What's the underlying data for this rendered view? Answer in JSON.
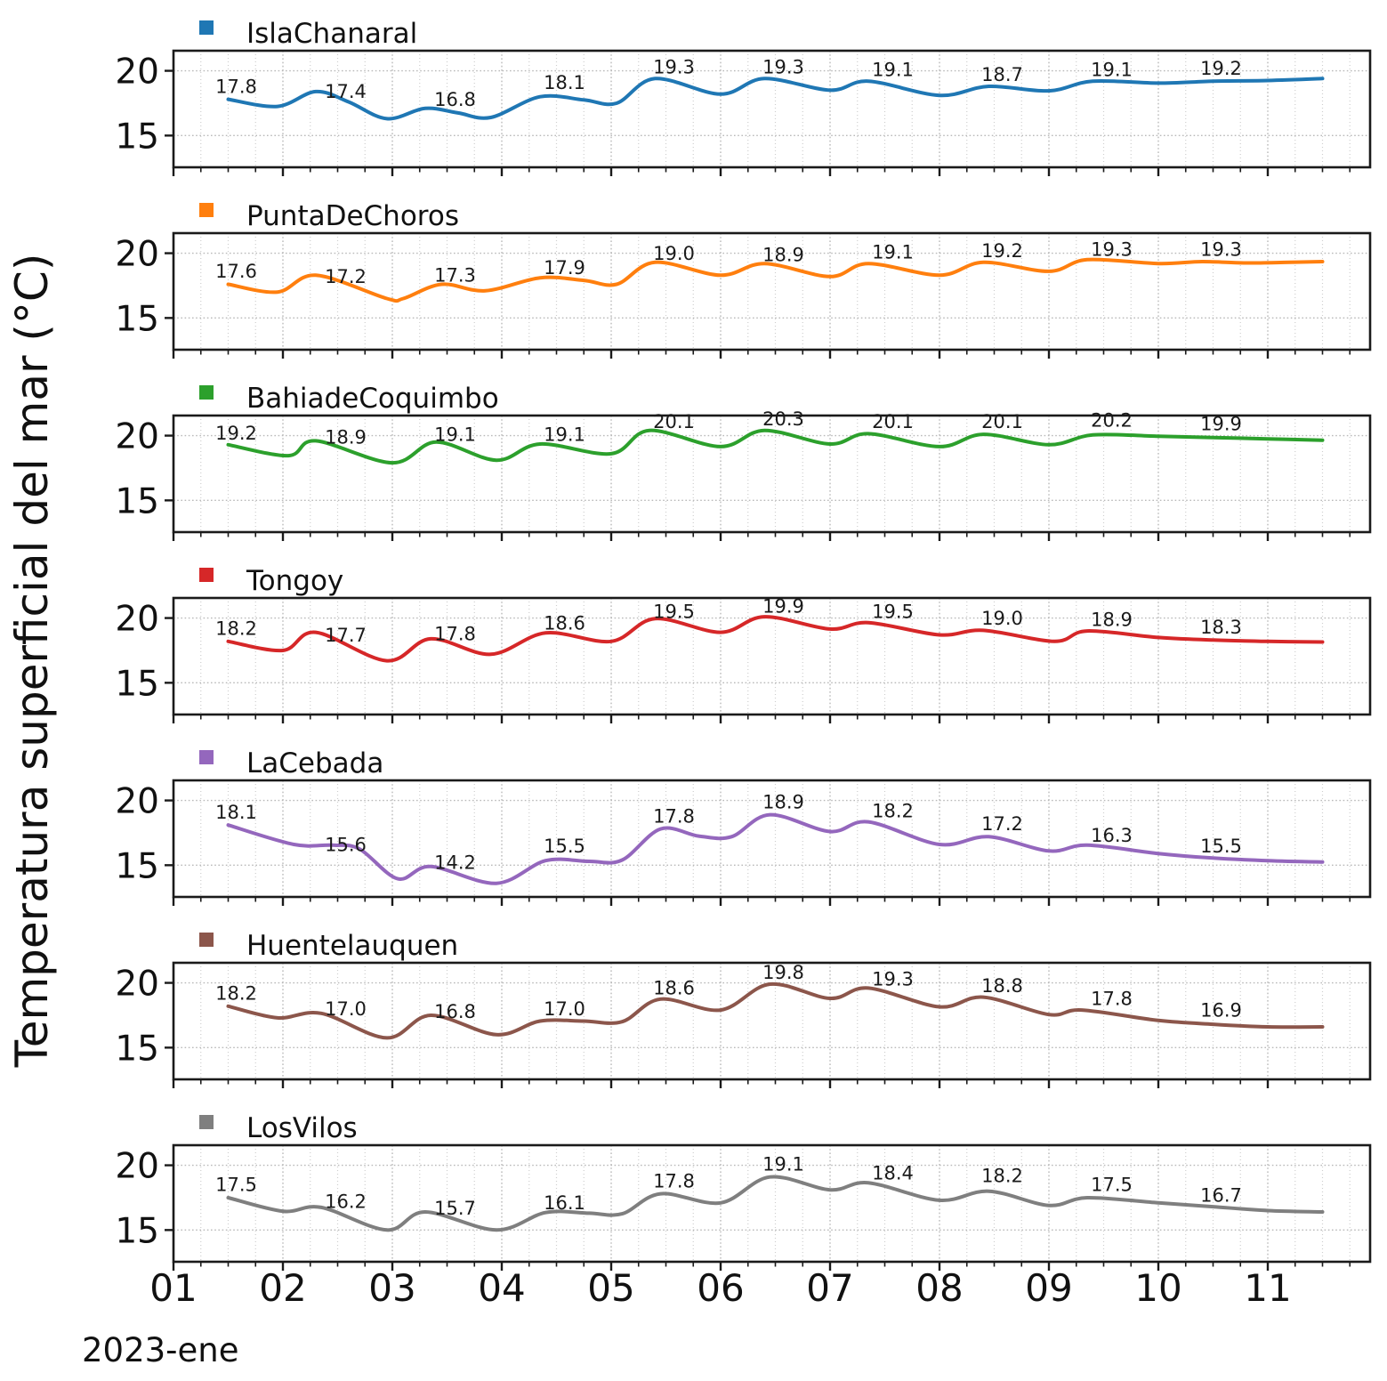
{
  "figure": {
    "ylabel": "Temperatura superficial del mar (°C)",
    "x_offset_label": "2023-ene",
    "y_tick_labels": [
      "20",
      "15"
    ],
    "x_tick_labels": [
      "01",
      "02",
      "03",
      "04",
      "05",
      "06",
      "07",
      "08",
      "09",
      "10",
      "11"
    ]
  },
  "chart_data": {
    "type": "line",
    "title": "",
    "ylabel": "Temperatura superficial del mar (°C)",
    "xlabel": "2023-ene",
    "x_unit": "day of January 2023",
    "xlim": [
      1.0,
      11.93
    ],
    "ylim": [
      12.55,
      21.55
    ],
    "x_ticks": [
      1,
      2,
      3,
      4,
      5,
      6,
      7,
      8,
      9,
      10,
      11
    ],
    "x_minor_tick_step": 0.25,
    "y_ticks": [
      15,
      20
    ],
    "grid": true,
    "legend_position": "above-each-subplot",
    "label_days": [
      1.5,
      2.5,
      3.5,
      4.5,
      5.5,
      6.5,
      7.5,
      8.5,
      9.5,
      10.5
    ],
    "series": [
      {
        "name": "IslaChanaral",
        "color": "#1f77b4",
        "daily_labels": [
          "17.8",
          "17.4",
          "16.8",
          "18.1",
          "19.3",
          "19.3",
          "19.1",
          "18.7",
          "19.1",
          "19.2"
        ],
        "curve": [
          [
            1.5,
            17.8
          ],
          [
            1.95,
            17.25
          ],
          [
            2.3,
            18.4
          ],
          [
            2.6,
            17.6
          ],
          [
            2.95,
            16.3
          ],
          [
            3.3,
            17.1
          ],
          [
            3.6,
            16.75
          ],
          [
            3.9,
            16.4
          ],
          [
            4.35,
            18.0
          ],
          [
            4.75,
            17.75
          ],
          [
            5.05,
            17.5
          ],
          [
            5.4,
            19.4
          ],
          [
            6.0,
            18.2
          ],
          [
            6.4,
            19.4
          ],
          [
            7.0,
            18.5
          ],
          [
            7.35,
            19.2
          ],
          [
            8.0,
            18.1
          ],
          [
            8.45,
            18.8
          ],
          [
            9.0,
            18.45
          ],
          [
            9.4,
            19.2
          ],
          [
            10.0,
            19.05
          ],
          [
            10.5,
            19.2
          ],
          [
            11.0,
            19.25
          ],
          [
            11.5,
            19.4
          ]
        ]
      },
      {
        "name": "PuntaDeChoros",
        "color": "#ff7f0e",
        "daily_labels": [
          "17.6",
          "17.2",
          "17.3",
          "17.9",
          "19.0",
          "18.9",
          "19.1",
          "19.2",
          "19.3",
          "19.3"
        ],
        "curve": [
          [
            1.5,
            17.6
          ],
          [
            1.95,
            17.0
          ],
          [
            2.3,
            18.3
          ],
          [
            2.95,
            16.5
          ],
          [
            3.1,
            16.5
          ],
          [
            3.45,
            17.6
          ],
          [
            3.85,
            17.1
          ],
          [
            4.35,
            18.1
          ],
          [
            4.75,
            17.9
          ],
          [
            5.05,
            17.6
          ],
          [
            5.4,
            19.3
          ],
          [
            6.0,
            18.3
          ],
          [
            6.4,
            19.2
          ],
          [
            7.0,
            18.2
          ],
          [
            7.35,
            19.2
          ],
          [
            8.0,
            18.3
          ],
          [
            8.4,
            19.3
          ],
          [
            9.0,
            18.6
          ],
          [
            9.35,
            19.5
          ],
          [
            10.0,
            19.2
          ],
          [
            10.4,
            19.35
          ],
          [
            10.8,
            19.25
          ],
          [
            11.2,
            19.3
          ],
          [
            11.5,
            19.35
          ]
        ]
      },
      {
        "name": "BahiadeCoquimbo",
        "color": "#2ca02c",
        "daily_labels": [
          "19.2",
          "18.9",
          "19.1",
          "19.1",
          "20.1",
          "20.3",
          "20.1",
          "20.1",
          "20.2",
          "19.9"
        ],
        "curve": [
          [
            1.5,
            19.3
          ],
          [
            2.05,
            18.45
          ],
          [
            2.3,
            19.6
          ],
          [
            3.0,
            17.9
          ],
          [
            3.4,
            19.5
          ],
          [
            3.95,
            18.1
          ],
          [
            4.35,
            19.35
          ],
          [
            5.0,
            18.6
          ],
          [
            5.35,
            20.4
          ],
          [
            6.0,
            19.15
          ],
          [
            6.4,
            20.4
          ],
          [
            7.0,
            19.35
          ],
          [
            7.35,
            20.15
          ],
          [
            8.0,
            19.15
          ],
          [
            8.4,
            20.1
          ],
          [
            9.0,
            19.3
          ],
          [
            9.4,
            20.05
          ],
          [
            10.0,
            19.95
          ],
          [
            10.5,
            19.85
          ],
          [
            11.0,
            19.75
          ],
          [
            11.5,
            19.65
          ]
        ]
      },
      {
        "name": "Tongoy",
        "color": "#d62728",
        "daily_labels": [
          "18.2",
          "17.7",
          "17.8",
          "18.6",
          "19.5",
          "19.9",
          "19.5",
          "19.0",
          "18.9",
          "18.3"
        ],
        "curve": [
          [
            1.5,
            18.2
          ],
          [
            2.0,
            17.5
          ],
          [
            2.3,
            18.9
          ],
          [
            2.95,
            16.7
          ],
          [
            3.35,
            18.4
          ],
          [
            3.9,
            17.2
          ],
          [
            4.4,
            18.85
          ],
          [
            5.0,
            18.2
          ],
          [
            5.4,
            19.95
          ],
          [
            6.0,
            18.9
          ],
          [
            6.4,
            20.1
          ],
          [
            7.0,
            19.15
          ],
          [
            7.35,
            19.65
          ],
          [
            8.0,
            18.7
          ],
          [
            8.4,
            19.05
          ],
          [
            9.05,
            18.2
          ],
          [
            9.35,
            19.0
          ],
          [
            10.0,
            18.5
          ],
          [
            10.5,
            18.3
          ],
          [
            11.0,
            18.2
          ],
          [
            11.5,
            18.15
          ]
        ]
      },
      {
        "name": "LaCebada",
        "color": "#9467bd",
        "daily_labels": [
          "18.1",
          "15.6",
          "14.2",
          "15.5",
          "17.8",
          "18.9",
          "18.2",
          "17.2",
          "16.3",
          "15.5"
        ],
        "curve": [
          [
            1.5,
            18.1
          ],
          [
            2.1,
            16.6
          ],
          [
            2.45,
            16.55
          ],
          [
            2.7,
            16.25
          ],
          [
            3.05,
            13.95
          ],
          [
            3.35,
            14.9
          ],
          [
            3.95,
            13.6
          ],
          [
            4.4,
            15.35
          ],
          [
            4.8,
            15.3
          ],
          [
            5.1,
            15.4
          ],
          [
            5.45,
            17.8
          ],
          [
            5.8,
            17.25
          ],
          [
            6.1,
            17.2
          ],
          [
            6.45,
            18.9
          ],
          [
            7.0,
            17.6
          ],
          [
            7.35,
            18.35
          ],
          [
            8.0,
            16.6
          ],
          [
            8.45,
            17.2
          ],
          [
            9.0,
            16.1
          ],
          [
            9.35,
            16.55
          ],
          [
            10.0,
            15.9
          ],
          [
            10.5,
            15.55
          ],
          [
            11.0,
            15.35
          ],
          [
            11.5,
            15.25
          ]
        ]
      },
      {
        "name": "Huentelauquen",
        "color": "#8c564b",
        "daily_labels": [
          "18.2",
          "17.0",
          "16.8",
          "17.0",
          "18.6",
          "19.8",
          "19.3",
          "18.8",
          "17.8",
          "16.9"
        ],
        "curve": [
          [
            1.5,
            18.2
          ],
          [
            1.95,
            17.3
          ],
          [
            2.35,
            17.65
          ],
          [
            2.95,
            15.75
          ],
          [
            3.35,
            17.5
          ],
          [
            3.95,
            16.0
          ],
          [
            4.35,
            17.05
          ],
          [
            4.75,
            17.05
          ],
          [
            5.1,
            17.0
          ],
          [
            5.45,
            18.75
          ],
          [
            6.0,
            17.9
          ],
          [
            6.45,
            19.9
          ],
          [
            7.0,
            18.8
          ],
          [
            7.35,
            19.6
          ],
          [
            8.0,
            18.15
          ],
          [
            8.4,
            18.9
          ],
          [
            9.0,
            17.55
          ],
          [
            9.3,
            17.9
          ],
          [
            10.0,
            17.1
          ],
          [
            10.5,
            16.8
          ],
          [
            11.0,
            16.6
          ],
          [
            11.5,
            16.6
          ]
        ]
      },
      {
        "name": "LosVilos",
        "color": "#7f7f7f",
        "daily_labels": [
          "17.5",
          "16.2",
          "15.7",
          "16.1",
          "17.8",
          "19.1",
          "18.4",
          "18.2",
          "17.5",
          "16.7"
        ],
        "curve": [
          [
            1.5,
            17.5
          ],
          [
            2.0,
            16.45
          ],
          [
            2.35,
            16.75
          ],
          [
            2.95,
            15.0
          ],
          [
            3.3,
            16.4
          ],
          [
            3.95,
            15.0
          ],
          [
            4.4,
            16.35
          ],
          [
            4.8,
            16.3
          ],
          [
            5.1,
            16.25
          ],
          [
            5.45,
            17.8
          ],
          [
            6.0,
            17.1
          ],
          [
            6.45,
            19.1
          ],
          [
            7.0,
            18.1
          ],
          [
            7.35,
            18.65
          ],
          [
            8.0,
            17.3
          ],
          [
            8.45,
            18.0
          ],
          [
            9.0,
            16.9
          ],
          [
            9.35,
            17.5
          ],
          [
            10.0,
            17.1
          ],
          [
            10.5,
            16.8
          ],
          [
            11.0,
            16.5
          ],
          [
            11.5,
            16.4
          ]
        ]
      }
    ]
  }
}
